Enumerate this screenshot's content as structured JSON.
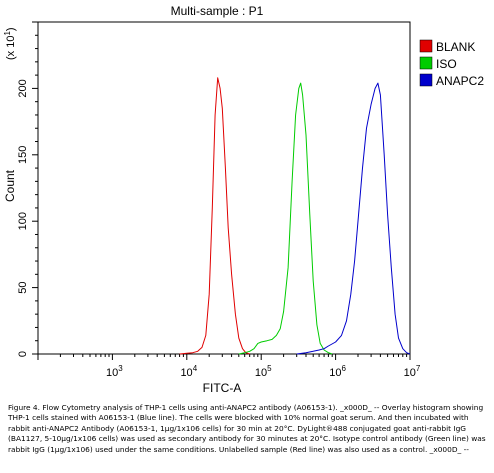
{
  "chart_data": {
    "type": "histogram",
    "title": "Multi-sample : P1",
    "xlabel": "FITC-A",
    "ylabel": "Count",
    "y_multiplier_label": "(x 10",
    "y_multiplier_exp": "1",
    "y_multiplier_close": ")",
    "x_scale": "log",
    "xlim": [
      100,
      10000000
    ],
    "ylim": [
      0,
      250
    ],
    "x_ticks": [
      {
        "value": 1000,
        "base": "10",
        "exp": "3"
      },
      {
        "value": 10000,
        "base": "10",
        "exp": "4"
      },
      {
        "value": 100000,
        "base": "10",
        "exp": "5"
      },
      {
        "value": 1000000,
        "base": "10",
        "exp": "6"
      },
      {
        "value": 10000000,
        "base": "10",
        "exp": "7"
      }
    ],
    "y_ticks": [
      "0",
      "50",
      "100",
      "150",
      "200"
    ],
    "y_tick_values": [
      0,
      50,
      100,
      150,
      200
    ],
    "grid": false,
    "legend_position": "right",
    "series": [
      {
        "name": "BLANK",
        "color": "#e00000",
        "points": [
          [
            8000,
            0
          ],
          [
            10000,
            0.5
          ],
          [
            12000,
            1
          ],
          [
            14000,
            2
          ],
          [
            16000,
            5
          ],
          [
            18000,
            14
          ],
          [
            20000,
            45
          ],
          [
            22000,
            110
          ],
          [
            24000,
            180
          ],
          [
            26000,
            208
          ],
          [
            28000,
            200
          ],
          [
            30000,
            185
          ],
          [
            33000,
            140
          ],
          [
            36000,
            95
          ],
          [
            40000,
            60
          ],
          [
            45000,
            30
          ],
          [
            50000,
            12
          ],
          [
            56000,
            4
          ],
          [
            62000,
            1
          ],
          [
            70000,
            0
          ]
        ]
      },
      {
        "name": "ISO",
        "color": "#00cc00",
        "points": [
          [
            50000,
            0
          ],
          [
            60000,
            1
          ],
          [
            70000,
            2
          ],
          [
            80000,
            4
          ],
          [
            90000,
            8
          ],
          [
            100000,
            9
          ],
          [
            120000,
            10
          ],
          [
            140000,
            11
          ],
          [
            160000,
            14
          ],
          [
            180000,
            19
          ],
          [
            200000,
            32
          ],
          [
            230000,
            65
          ],
          [
            260000,
            130
          ],
          [
            290000,
            180
          ],
          [
            320000,
            200
          ],
          [
            340000,
            204
          ],
          [
            360000,
            195
          ],
          [
            400000,
            165
          ],
          [
            450000,
            105
          ],
          [
            500000,
            55
          ],
          [
            560000,
            22
          ],
          [
            620000,
            8
          ],
          [
            700000,
            3
          ],
          [
            800000,
            1
          ],
          [
            900000,
            0
          ]
        ]
      },
      {
        "name": "ANAPC2",
        "color": "#0000cc",
        "points": [
          [
            300000,
            0
          ],
          [
            400000,
            1
          ],
          [
            500000,
            2
          ],
          [
            600000,
            3
          ],
          [
            700000,
            4
          ],
          [
            800000,
            6
          ],
          [
            1000000,
            9
          ],
          [
            1200000,
            14
          ],
          [
            1400000,
            25
          ],
          [
            1600000,
            45
          ],
          [
            1800000,
            70
          ],
          [
            2000000,
            100
          ],
          [
            2300000,
            140
          ],
          [
            2600000,
            170
          ],
          [
            3000000,
            188
          ],
          [
            3400000,
            200
          ],
          [
            3700000,
            204
          ],
          [
            4000000,
            195
          ],
          [
            4500000,
            150
          ],
          [
            5000000,
            105
          ],
          [
            5600000,
            65
          ],
          [
            6300000,
            30
          ],
          [
            7000000,
            12
          ],
          [
            8000000,
            4
          ],
          [
            9000000,
            1
          ],
          [
            10000000,
            0
          ]
        ]
      }
    ]
  },
  "caption": {
    "text": "Figure 4. Flow Cytometry analysis of THP-1 cells using anti-ANAPC2 antibody (A06153-1). _x000D_ -- Overlay histogram showing THP-1 cells stained with A06153-1 (Blue line). The cells were blocked with 10% normal goat serum. And then incubated with rabbit anti-ANAPC2 Antibody (A06153-1, 1μg/1x106 cells) for 30 min at 20°C. DyLight®488 conjugated goat anti-rabbit IgG (BA1127, 5-10μg/1x106 cells) was used as secondary antibody for 30 minutes at 20°C. Isotype control antibody (Green line) was rabbit IgG (1μg/1x106) used under the same conditions. Unlabelled sample (Red line) was also used as a control. _x000D_ --"
  }
}
